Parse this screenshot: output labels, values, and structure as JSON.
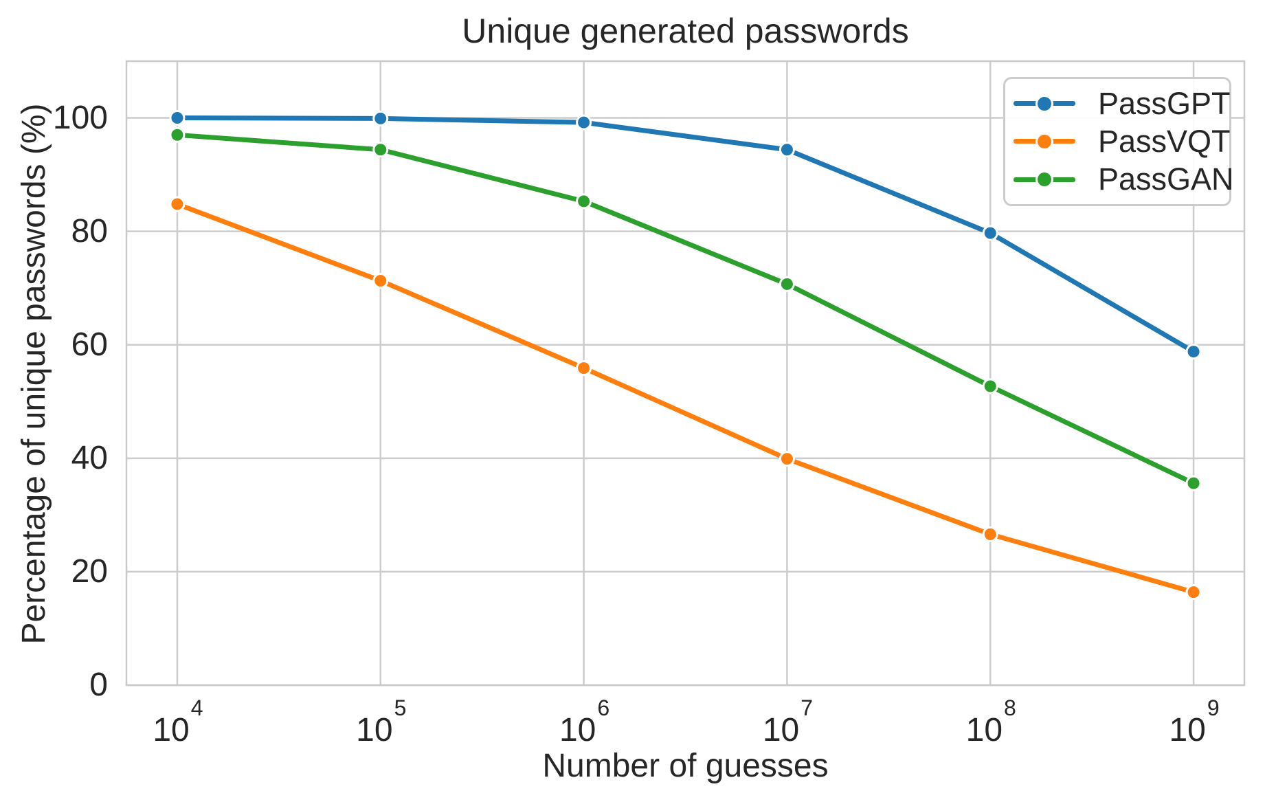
{
  "figure": {
    "title": "Unique generated passwords",
    "xlabel": "Number of guesses",
    "ylabel": "Percentage of unique passwords (%)"
  },
  "chart_data": {
    "type": "line",
    "title": "Unique generated passwords",
    "xlabel": "Number of guesses",
    "ylabel": "Percentage of unique passwords (%)",
    "x_scale": "log",
    "x": [
      10000,
      100000,
      1000000,
      10000000,
      100000000,
      1000000000
    ],
    "x_tick_base": "10",
    "x_tick_exponents": [
      4,
      5,
      6,
      7,
      8,
      9
    ],
    "y_ticks": [
      0,
      20,
      40,
      60,
      80,
      100
    ],
    "xlim_log": [
      3.75,
      9.25
    ],
    "ylim": [
      0,
      110
    ],
    "grid": true,
    "legend_position": "upper right",
    "series": [
      {
        "name": "PassGPT",
        "color": "#1f77b4",
        "values": [
          100.0,
          99.9,
          99.2,
          94.4,
          79.7,
          58.8
        ]
      },
      {
        "name": "PassVQT",
        "color": "#ff7f0e",
        "values": [
          84.8,
          71.3,
          55.9,
          39.9,
          26.6,
          16.4
        ]
      },
      {
        "name": "PassGAN",
        "color": "#2ca02c",
        "values": [
          97.0,
          94.4,
          85.3,
          70.7,
          52.7,
          35.6
        ]
      }
    ],
    "colors": {
      "grid": "#cccccc",
      "spine": "#c9c9c9",
      "text": "#262626",
      "background": "#ffffff"
    }
  }
}
